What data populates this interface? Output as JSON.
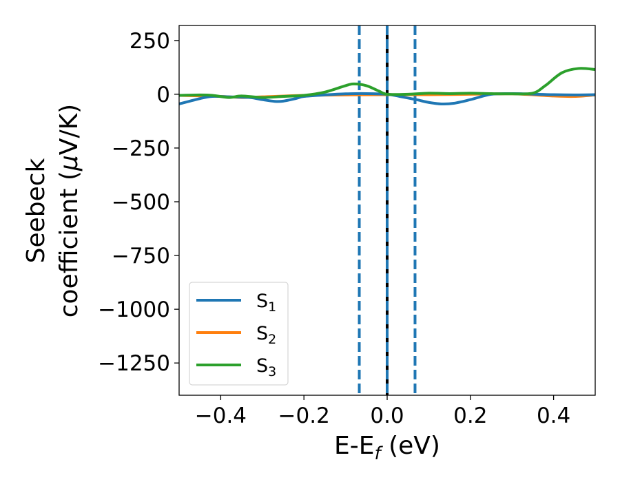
{
  "chart_data": {
    "type": "line",
    "title": "",
    "xlabel": "E-E_f (eV)",
    "xlabel_parts": {
      "main": "E-E",
      "sub": "f",
      "tail": " (eV)"
    },
    "ylabel_line1": "Seebeck",
    "ylabel_line2_pre": "coefficient  (",
    "ylabel_line2_mu": "μ",
    "ylabel_line2_post": "V/K)",
    "xlim": [
      -0.5,
      0.5
    ],
    "ylim": [
      -1400,
      320
    ],
    "xticks": [
      -0.4,
      -0.2,
      0.0,
      0.2,
      0.4
    ],
    "xtick_labels": [
      "−0.4",
      "−0.2",
      "0.0",
      "0.2",
      "0.4"
    ],
    "yticks": [
      250,
      0,
      -250,
      -500,
      -750,
      -1000,
      -1250
    ],
    "ytick_labels": [
      "250",
      "0",
      "−250",
      "−500",
      "−750",
      "−1000",
      "−1250"
    ],
    "grid": false,
    "legend_position": "lower-left",
    "vertical_lines": [
      {
        "x": -0.067,
        "style": "dashed",
        "color": "#1f77b4"
      },
      {
        "x": 0.0,
        "style": "solid",
        "color": "#000000"
      },
      {
        "x": 0.0,
        "style": "dashed",
        "color": "#1f77b4"
      },
      {
        "x": 0.067,
        "style": "dashed",
        "color": "#1f77b4"
      }
    ],
    "series": [
      {
        "name": "S_1",
        "label_main": "S",
        "label_sub": "1",
        "color": "#1f77b4",
        "x": [
          -0.5,
          -0.45,
          -0.42,
          -0.38,
          -0.33,
          -0.3,
          -0.27,
          -0.25,
          -0.22,
          -0.2,
          -0.15,
          -0.1,
          -0.05,
          0.0,
          0.03,
          0.07,
          0.1,
          0.13,
          0.16,
          0.2,
          0.25,
          0.3,
          0.33,
          0.36,
          0.4,
          0.45,
          0.5
        ],
        "y": [
          -45,
          -20,
          -10,
          -12,
          -15,
          -25,
          -33,
          -32,
          -20,
          -10,
          -3,
          2,
          3,
          0,
          -10,
          -25,
          -38,
          -45,
          -42,
          -25,
          0,
          3,
          2,
          0,
          -2,
          -3,
          -2
        ]
      },
      {
        "name": "S_2",
        "label_main": "S",
        "label_sub": "2",
        "color": "#ff7f0e",
        "x": [
          -0.5,
          -0.4,
          -0.35,
          -0.3,
          -0.2,
          -0.1,
          0.0,
          0.1,
          0.2,
          0.3,
          0.4,
          0.45,
          0.5
        ],
        "y": [
          -5,
          -10,
          -15,
          -12,
          -5,
          -3,
          -2,
          -2,
          0,
          2,
          -8,
          -10,
          -3
        ]
      },
      {
        "name": "S_3",
        "label_main": "S",
        "label_sub": "3",
        "color": "#2ca02c",
        "x": [
          -0.5,
          -0.45,
          -0.42,
          -0.38,
          -0.35,
          -0.3,
          -0.25,
          -0.2,
          -0.15,
          -0.1,
          -0.08,
          -0.05,
          -0.02,
          0.0,
          0.05,
          0.1,
          0.15,
          0.2,
          0.25,
          0.3,
          0.35,
          0.38,
          0.42,
          0.46,
          0.5
        ],
        "y": [
          -5,
          -3,
          -5,
          -15,
          -8,
          -15,
          -10,
          -5,
          10,
          40,
          48,
          40,
          15,
          0,
          0,
          5,
          3,
          5,
          3,
          2,
          5,
          40,
          100,
          120,
          115
        ]
      }
    ]
  }
}
